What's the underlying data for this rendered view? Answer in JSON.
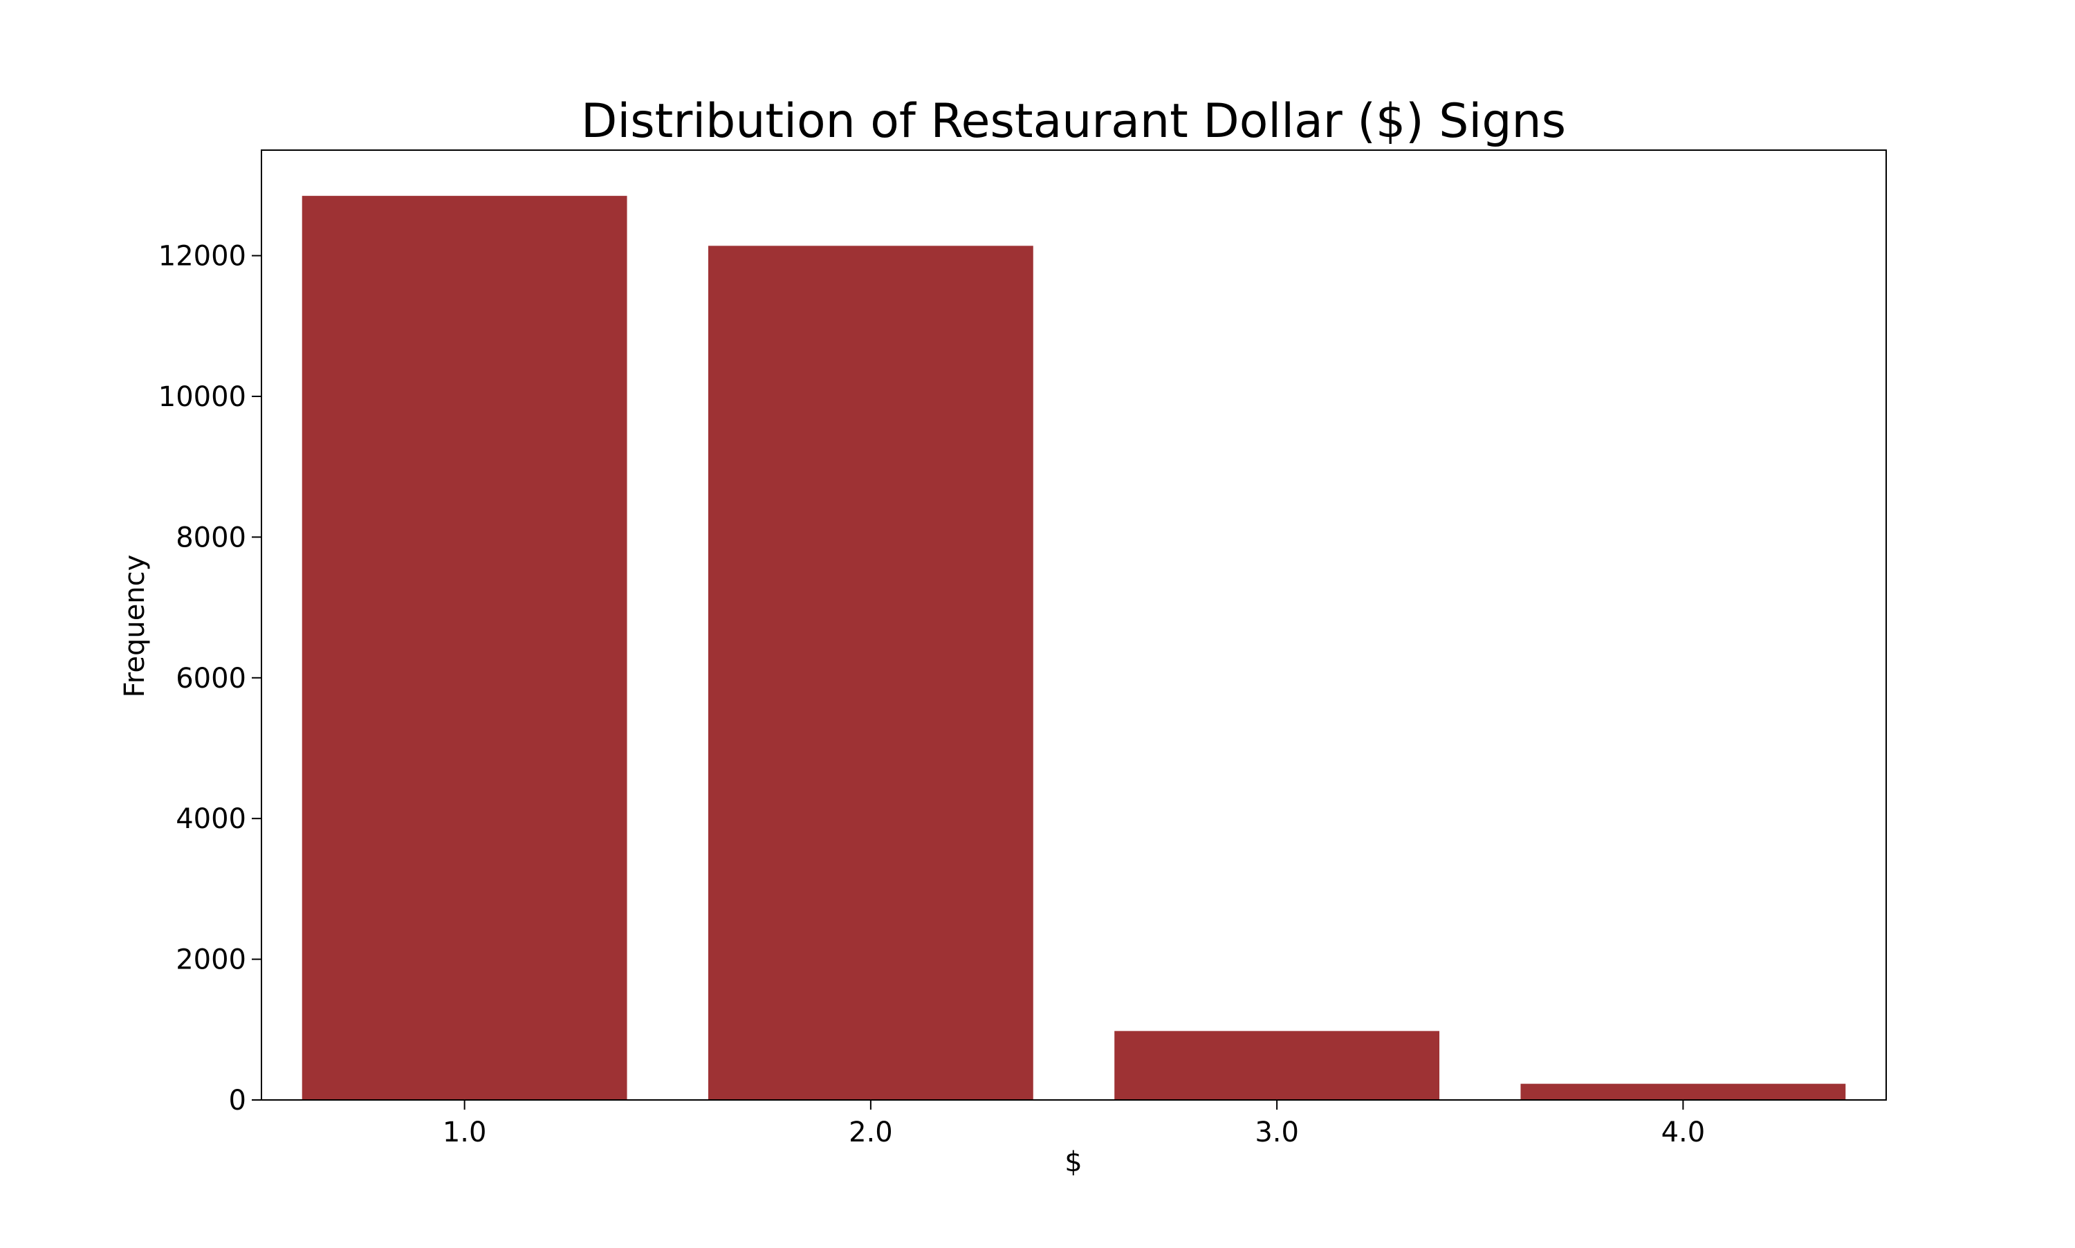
{
  "chart_data": {
    "type": "bar",
    "title": "Distribution of Restaurant Dollar ($) Signs",
    "xlabel": "$",
    "ylabel": "Frequency",
    "categories": [
      "1.0",
      "2.0",
      "3.0",
      "4.0"
    ],
    "values": [
      12850,
      12140,
      980,
      230
    ],
    "ylim": [
      0,
      13500
    ],
    "yticks": [
      0,
      2000,
      4000,
      6000,
      8000,
      10000,
      12000
    ],
    "ytick_labels": [
      "0",
      "2000",
      "4000",
      "6000",
      "8000",
      "10000",
      "12000"
    ],
    "bar_color": "#9e3234",
    "grid": false,
    "legend": "none"
  }
}
